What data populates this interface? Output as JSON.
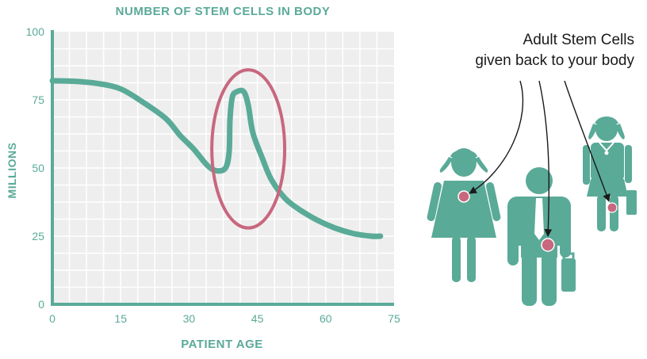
{
  "chart_data": {
    "type": "line",
    "title": "NUMBER OF STEM CELLS IN BODY",
    "xlabel": "PATIENT AGE",
    "ylabel": "MILLIONS",
    "xlim": [
      0,
      75
    ],
    "ylim": [
      0,
      100
    ],
    "xticks": [
      "0",
      "15",
      "30",
      "45",
      "60",
      "75"
    ],
    "yticks": [
      "0",
      "25",
      "50",
      "75",
      "100"
    ],
    "grid": true,
    "series": [
      {
        "x": [
          0,
          5,
          10,
          15,
          20,
          25,
          28,
          31,
          34,
          36,
          38,
          38.8,
          39,
          39.5,
          40.5,
          42,
          43,
          44,
          46,
          48,
          51,
          54,
          58,
          62,
          66,
          70,
          72
        ],
        "y": [
          82,
          81.8,
          81,
          79,
          74,
          68,
          62,
          57,
          51,
          49,
          50,
          56,
          68,
          76,
          78,
          78,
          73,
          63,
          54,
          46,
          39,
          35,
          31,
          28,
          26,
          25,
          25
        ]
      }
    ],
    "annotation": {
      "shape": "ellipse",
      "center": [
        43,
        57
      ],
      "radius": [
        8,
        29
      ],
      "color": "#c8677e"
    },
    "colors": {
      "line": "#5aaa98",
      "axis": "#5aaa98",
      "plot_bg": "#eeeeee",
      "grid": "#ffffff",
      "highlight": "#c8677e"
    }
  },
  "callout": {
    "line1": "Adult Stem Cells",
    "line2": "given back to your body"
  },
  "illustration": {
    "figures": [
      "girl-figure",
      "man-figure",
      "woman-figure"
    ],
    "figure_color": "#5aaa98",
    "dot_color": "#c8677e"
  }
}
